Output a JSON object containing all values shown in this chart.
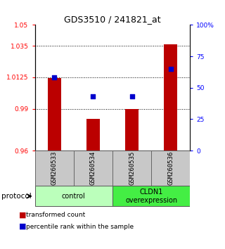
{
  "title": "GDS3510 / 241821_at",
  "samples": [
    "GSM260533",
    "GSM260534",
    "GSM260535",
    "GSM260536"
  ],
  "bar_baseline": 0.96,
  "bar_tops": [
    1.012,
    0.9825,
    0.99,
    1.036
  ],
  "percentile_values": [
    0.58,
    0.43,
    0.43,
    0.65
  ],
  "ylim_left": [
    0.96,
    1.05
  ],
  "ylim_right": [
    0.0,
    1.0
  ],
  "yticks_left": [
    0.96,
    0.99,
    1.0125,
    1.035,
    1.05
  ],
  "ytick_labels_left": [
    "0.96",
    "0.99",
    "1.0125",
    "1.035",
    "1.05"
  ],
  "yticks_right": [
    0.0,
    0.25,
    0.5,
    0.75,
    1.0
  ],
  "ytick_labels_right": [
    "0",
    "25",
    "50",
    "75",
    "100%"
  ],
  "bar_color": "#bb0000",
  "dot_color": "#0000cc",
  "grid_yticks": [
    0.99,
    1.0125,
    1.035
  ],
  "groups": [
    {
      "label": "control",
      "samples": [
        0,
        1
      ],
      "color": "#bbffbb"
    },
    {
      "label": "CLDN1\noverexpression",
      "samples": [
        2,
        3
      ],
      "color": "#44ee44"
    }
  ],
  "protocol_label": "protocol",
  "legend_items": [
    {
      "color": "#bb0000",
      "label": "transformed count"
    },
    {
      "color": "#0000cc",
      "label": "percentile rank within the sample"
    }
  ],
  "bar_width": 0.35,
  "sample_box_color": "#c8c8c8",
  "background_color": "#ffffff"
}
